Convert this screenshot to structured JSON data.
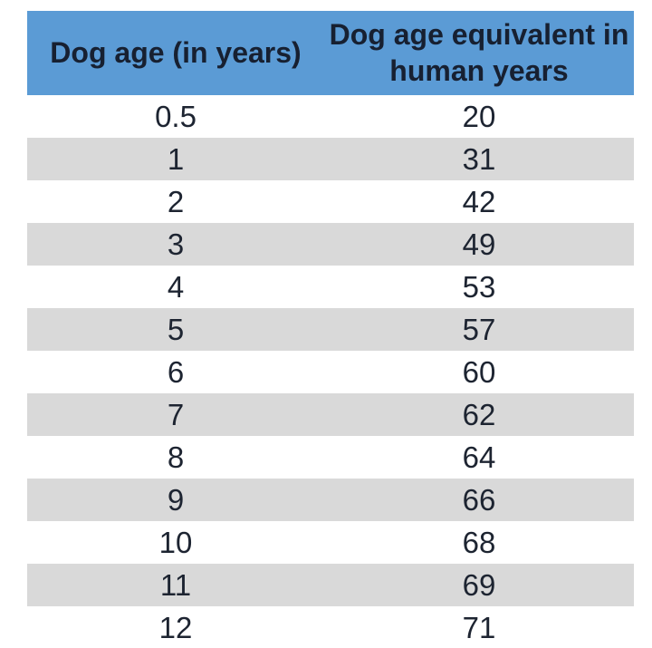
{
  "colors": {
    "header_bg": "#5b9bd5",
    "header_text": "#172031",
    "cell_text": "#1d2431",
    "row_bg": "#ffffff",
    "row_alt_bg": "#d9d9d9"
  },
  "table": {
    "header_col1": "Dog age (in years)",
    "header_col2_line1": "Dog age equivalent in",
    "header_col2_line2": "human years",
    "rows": [
      [
        "0.5",
        "20"
      ],
      [
        "1",
        "31"
      ],
      [
        "2",
        "42"
      ],
      [
        "3",
        "49"
      ],
      [
        "4",
        "53"
      ],
      [
        "5",
        "57"
      ],
      [
        "6",
        "60"
      ],
      [
        "7",
        "62"
      ],
      [
        "8",
        "64"
      ],
      [
        "9",
        "66"
      ],
      [
        "10",
        "68"
      ],
      [
        "11",
        "69"
      ],
      [
        "12",
        "71"
      ]
    ]
  },
  "chart_data": {
    "type": "table",
    "columns": [
      "Dog age (in years)",
      "Dog age equivalent in human years"
    ],
    "dog_age_years": [
      0.5,
      1,
      2,
      3,
      4,
      5,
      6,
      7,
      8,
      9,
      10,
      11,
      12
    ],
    "human_years_equivalent": [
      20,
      31,
      42,
      49,
      53,
      57,
      60,
      62,
      64,
      66,
      68,
      69,
      71
    ],
    "layout": {
      "header_background": "#5b9bd5",
      "banded_rows": true,
      "band_color": "#d9d9d9",
      "text_alignment": "center"
    }
  }
}
